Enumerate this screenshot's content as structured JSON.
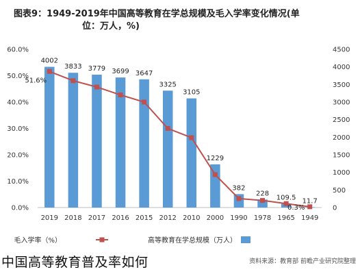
{
  "caption": "中国高等教育普及率如何",
  "source": "资料来源：教育部 前瞻产业研究院整理",
  "chart_data": {
    "type": "bar+line",
    "title": "图表9：1949-2019年中国高等教育在学总规模及毛入学率变化情况(单位：万人，%)",
    "title_line1": "图表9：1949-2019年中国高等教育在学总规模及毛入学率变化情况(单",
    "title_line2": "位：万人，%)",
    "categories": [
      "2019",
      "2018",
      "2017",
      "2016",
      "2015",
      "2012",
      "2010",
      "2000",
      "1990",
      "1978",
      "1965",
      "1949"
    ],
    "series": [
      {
        "name": "高等教育在学总规模（万人）",
        "type": "bar",
        "axis": "right",
        "color": "#5b9bd5",
        "values": [
          4002,
          3833,
          3779,
          3699,
          3647,
          3325,
          3105,
          1229,
          382,
          228,
          109.5,
          11.7
        ],
        "labels": [
          "4002",
          "3833",
          "3779",
          "3699",
          "3647",
          "3325",
          "3105",
          "1229",
          "382",
          "228",
          "109.5",
          "11.7"
        ]
      },
      {
        "name": "毛入学率（%）",
        "type": "line",
        "axis": "left",
        "color": "#c0504d",
        "values": [
          51.6,
          48.1,
          45.7,
          42.7,
          40.0,
          30.0,
          26.5,
          12.5,
          3.4,
          2.7,
          1.5,
          0.3
        ],
        "labels": [
          "51.6%",
          "",
          "",
          "",
          "",
          "",
          "",
          "",
          "",
          "",
          "",
          "0.3%"
        ]
      }
    ],
    "left_axis": {
      "min": 0,
      "max": 60,
      "step": 10,
      "ticks": [
        "0.0%",
        "10.0%",
        "20.0%",
        "30.0%",
        "40.0%",
        "50.0%",
        "60.0%"
      ]
    },
    "right_axis": {
      "min": 0,
      "max": 4500,
      "step": 500,
      "ticks": [
        "0",
        "500",
        "1000",
        "1500",
        "2000",
        "2500",
        "3000",
        "3500",
        "4000",
        "4500"
      ]
    },
    "legend_placement": "bottom",
    "grid": false
  }
}
